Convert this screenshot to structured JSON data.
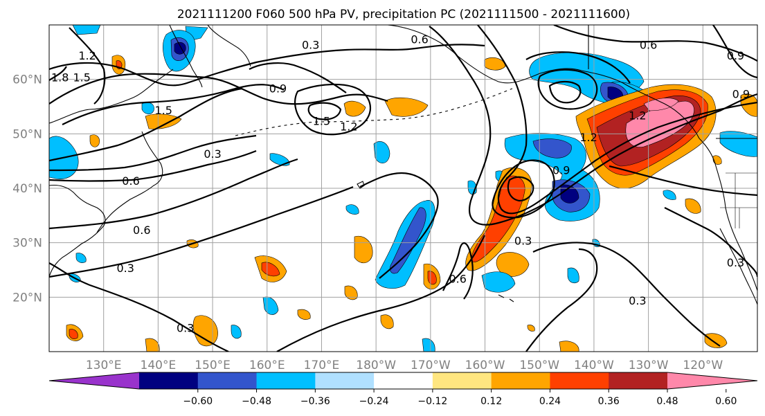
{
  "title": "2021111200 F060 500 hPa PV, precipitation PC (2021111500 - 2021111600)",
  "map": {
    "projection": "PlateCarree",
    "lon_range": [
      120,
      250
    ],
    "lat_range": [
      10,
      70
    ],
    "lat_ticks": [
      {
        "value": 20,
        "label": "20°N"
      },
      {
        "value": 30,
        "label": "30°N"
      },
      {
        "value": 40,
        "label": "40°N"
      },
      {
        "value": 50,
        "label": "50°N"
      },
      {
        "value": 60,
        "label": "60°N"
      }
    ],
    "lon_ticks": [
      {
        "value": 130,
        "label": "130°E"
      },
      {
        "value": 140,
        "label": "140°E"
      },
      {
        "value": 150,
        "label": "150°E"
      },
      {
        "value": 160,
        "label": "160°E"
      },
      {
        "value": 170,
        "label": "170°E"
      },
      {
        "value": 180,
        "label": "180°W"
      },
      {
        "value": 190,
        "label": "170°W"
      },
      {
        "value": 200,
        "label": "160°W"
      },
      {
        "value": 210,
        "label": "150°W"
      },
      {
        "value": 220,
        "label": "140°W"
      },
      {
        "value": 230,
        "label": "130°W"
      },
      {
        "value": 240,
        "label": "120°W"
      }
    ],
    "gridlines": true,
    "grid_color": "#a0a0a0",
    "contour_color": "#000000",
    "pv_contour_labels": [
      {
        "text": "0.3",
        "lon": 168,
        "lat": 66
      },
      {
        "text": "0.6",
        "lon": 188,
        "lat": 67
      },
      {
        "text": "0.6",
        "lon": 230,
        "lat": 66
      },
      {
        "text": "0.9",
        "lon": 246,
        "lat": 64
      },
      {
        "text": "1.2",
        "lon": 127,
        "lat": 64
      },
      {
        "text": "1.5",
        "lon": 126,
        "lat": 60
      },
      {
        "text": "1.8",
        "lon": 122,
        "lat": 60
      },
      {
        "text": "0.9",
        "lon": 162,
        "lat": 58
      },
      {
        "text": "1.5",
        "lon": 170,
        "lat": 52
      },
      {
        "text": "1.2",
        "lon": 175,
        "lat": 51
      },
      {
        "text": "1.5",
        "lon": 141,
        "lat": 54
      },
      {
        "text": "0.3",
        "lon": 150,
        "lat": 46
      },
      {
        "text": "0.6",
        "lon": 135,
        "lat": 41
      },
      {
        "text": "0.6",
        "lon": 137,
        "lat": 32
      },
      {
        "text": "0.3",
        "lon": 134,
        "lat": 25
      },
      {
        "text": "0.3",
        "lon": 145,
        "lat": 14
      },
      {
        "text": "0.6",
        "lon": 195,
        "lat": 23
      },
      {
        "text": "0.3",
        "lon": 207,
        "lat": 30
      },
      {
        "text": "0.3",
        "lon": 228,
        "lat": 19
      },
      {
        "text": "0.3",
        "lon": 246,
        "lat": 26
      },
      {
        "text": "0.9",
        "lon": 214,
        "lat": 43
      },
      {
        "text": "1.2",
        "lon": 219,
        "lat": 49
      },
      {
        "text": "1.2",
        "lon": 228,
        "lat": 53
      },
      {
        "text": "0.9",
        "lon": 247,
        "lat": 57
      }
    ]
  },
  "colorbar": {
    "colors": [
      "#9933cc",
      "#000080",
      "#3355cc",
      "#00bfff",
      "#b0e0ff",
      "#ffffff",
      "#ffe680",
      "#ffa500",
      "#ff4000",
      "#b22222",
      "#ff88aa"
    ],
    "tick_labels": [
      "−0.60",
      "−0.48",
      "−0.36",
      "−0.24",
      "−0.12",
      "0.12",
      "0.24",
      "0.36",
      "0.48",
      "0.60"
    ],
    "extend": "both"
  }
}
